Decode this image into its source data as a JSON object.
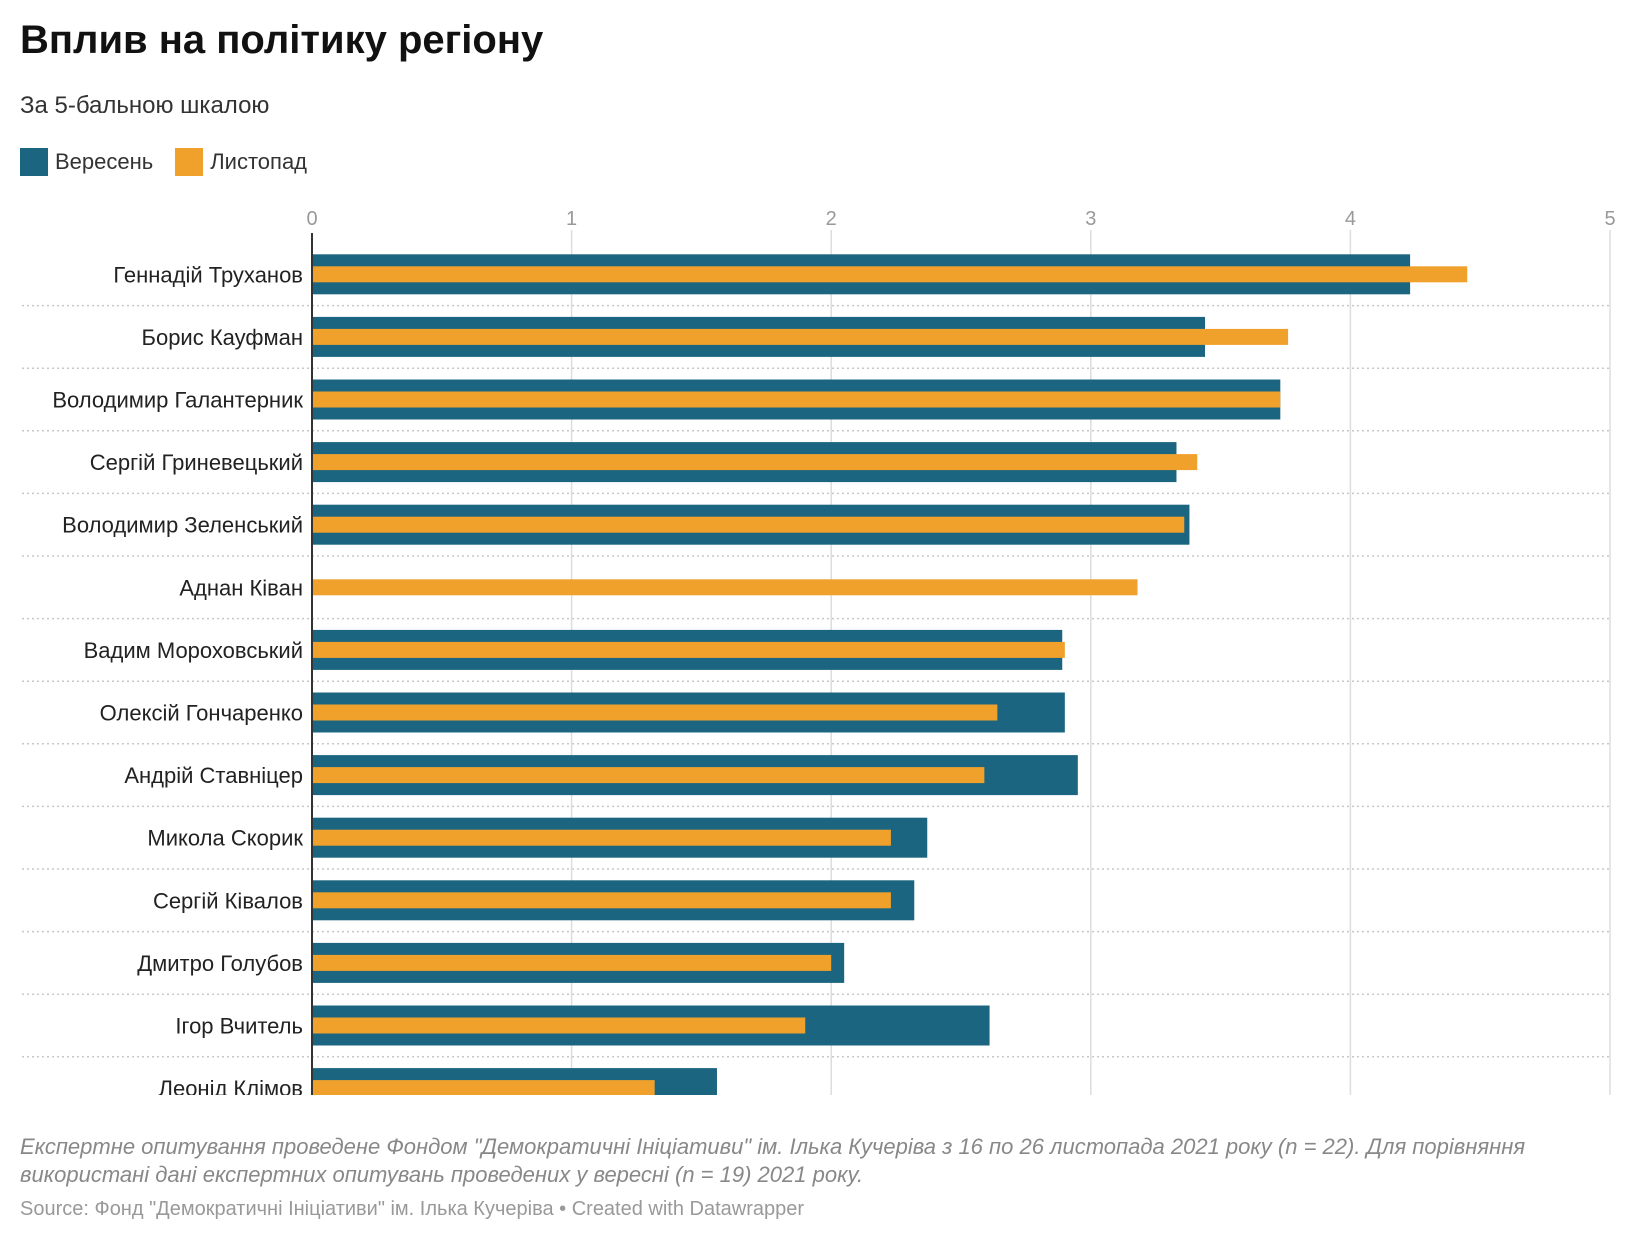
{
  "title": "Вплив на політику регіону",
  "subtitle": "За 5-бальною шкалою",
  "legend": [
    {
      "label": "Вересень",
      "color": "#1b6580"
    },
    {
      "label": "Листопад",
      "color": "#f0a12c"
    }
  ],
  "note": "Експертне опитування проведене Фондом \"Демократичні Ініціативи\" ім. Ілька Кучеріва з 16 по 26 листопада 2021 року (n = 22). Для порівняння використані дані експертних опитувань проведених у вересні (n = 19) 2021 року.",
  "source": "Source: Фонд \"Демократичні Ініціативи\" ім. Ілька Кучеріва • Created with Datawrapper",
  "chart_data": {
    "type": "bar",
    "orientation": "horizontal",
    "xlim": [
      0,
      5
    ],
    "ticks": [
      "0",
      "1",
      "2",
      "3",
      "4",
      "5"
    ],
    "grid": true,
    "legend_position": "top-left",
    "categories": [
      "Геннадій Труханов",
      "Борис Кауфман",
      "Володимир Галантерник",
      "Сергій Гриневецький",
      "Володимир Зеленський",
      "Аднан Ківан",
      "Вадим Мороховський",
      "Олексій Гончаренко",
      "Андрій Ставніцер",
      "Микола Скорик",
      "Сергій Ківалов",
      "Дмитро Голубов",
      "Ігор Вчитель",
      "Леонід Клімов"
    ],
    "series": [
      {
        "name": "Вересень",
        "color": "#1b6580",
        "values": [
          4.23,
          3.44,
          3.73,
          3.33,
          3.38,
          null,
          2.89,
          2.9,
          2.95,
          2.37,
          2.32,
          2.05,
          2.61,
          1.56
        ]
      },
      {
        "name": "Листопад",
        "color": "#f0a12c",
        "values": [
          4.45,
          3.76,
          3.73,
          3.41,
          3.36,
          3.18,
          2.9,
          2.64,
          2.59,
          2.23,
          2.23,
          2.0,
          1.9,
          1.32
        ]
      }
    ]
  }
}
